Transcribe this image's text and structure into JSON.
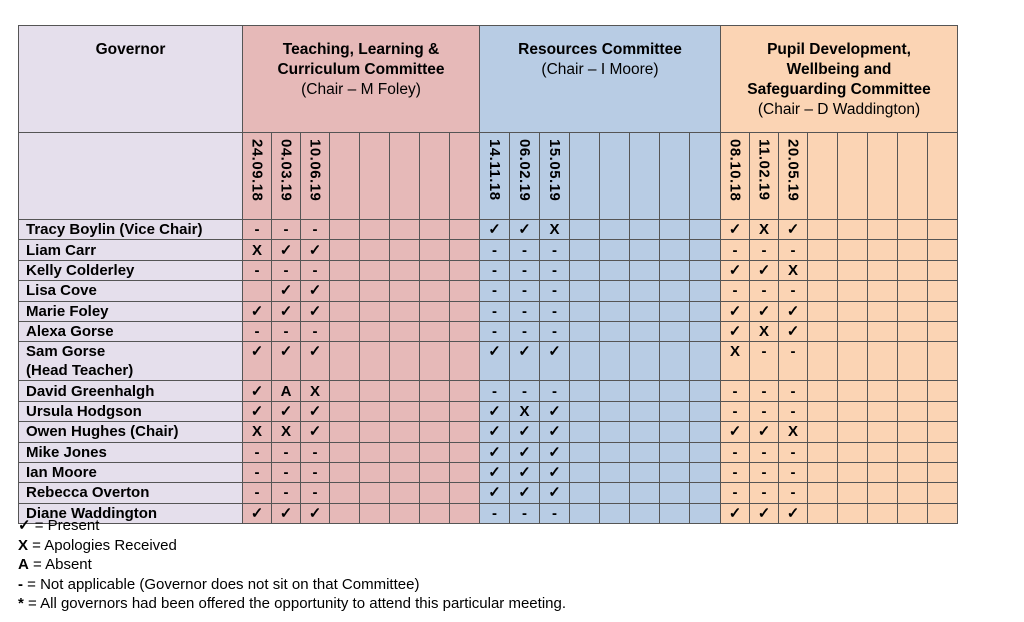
{
  "header": {
    "governor": "Governor",
    "committees": [
      {
        "title_line1": "Teaching, Learning &",
        "title_line2": "Curriculum Committee",
        "title_line3": "",
        "chair": "(Chair – M Foley)",
        "dates": [
          "24.09.18",
          "04.03.19",
          "10.06.19"
        ]
      },
      {
        "title_line1": "Resources Committee",
        "title_line2": "",
        "title_line3": "",
        "chair": "(Chair – I Moore)",
        "dates": [
          "14.11.18",
          "06.02.19",
          "15.05.19"
        ]
      },
      {
        "title_line1": "Pupil Development,",
        "title_line2": "Wellbeing and",
        "title_line3": "Safeguarding Committee",
        "chair": "(Chair – D Waddington)",
        "dates": [
          "08.10.18",
          "11.02.19",
          "20.05.19"
        ]
      }
    ]
  },
  "rows": [
    {
      "name": "Tracy Boylin (Vice Chair)",
      "name2": "",
      "c1": [
        "-",
        "-",
        "-"
      ],
      "c2": [
        "✓",
        "✓",
        "X"
      ],
      "c3": [
        "✓",
        "X",
        "✓"
      ]
    },
    {
      "name": "Liam Carr",
      "name2": "",
      "c1": [
        "X",
        "✓",
        "✓"
      ],
      "c2": [
        "-",
        "-",
        "-"
      ],
      "c3": [
        "-",
        "-",
        "-"
      ]
    },
    {
      "name": "Kelly Colderley",
      "name2": "",
      "c1": [
        "-",
        "-",
        "-"
      ],
      "c2": [
        "-",
        "-",
        "-"
      ],
      "c3": [
        "✓",
        "✓",
        "X"
      ]
    },
    {
      "name": "Lisa Cove",
      "name2": "",
      "c1": [
        "",
        "✓",
        "✓"
      ],
      "c2": [
        "-",
        "-",
        "-"
      ],
      "c3": [
        "-",
        "-",
        "-"
      ]
    },
    {
      "name": "Marie Foley",
      "name2": "",
      "c1": [
        "✓",
        "✓",
        "✓"
      ],
      "c2": [
        "-",
        "-",
        "-"
      ],
      "c3": [
        "✓",
        "✓",
        "✓"
      ]
    },
    {
      "name": "Alexa Gorse",
      "name2": "",
      "c1": [
        "-",
        "-",
        "-"
      ],
      "c2": [
        "-",
        "-",
        "-"
      ],
      "c3": [
        "✓",
        "X",
        "✓"
      ]
    },
    {
      "name": "Sam Gorse",
      "name2": "(Head Teacher)",
      "c1": [
        "✓",
        "✓",
        "✓"
      ],
      "c2": [
        "✓",
        "✓",
        "✓"
      ],
      "c3": [
        "X",
        "-",
        "-"
      ]
    },
    {
      "name": "David Greenhalgh",
      "name2": "",
      "c1": [
        "✓",
        "A",
        "X"
      ],
      "c2": [
        "-",
        "-",
        "-"
      ],
      "c3": [
        "-",
        "-",
        "-"
      ]
    },
    {
      "name": "Ursula Hodgson",
      "name2": "",
      "c1": [
        "✓",
        "✓",
        "✓"
      ],
      "c2": [
        "✓",
        "X",
        "✓"
      ],
      "c3": [
        "-",
        "-",
        "-"
      ]
    },
    {
      "name": "Owen Hughes (Chair)",
      "name2": "",
      "c1": [
        "X",
        "X",
        "✓"
      ],
      "c2": [
        "✓",
        "✓",
        "✓"
      ],
      "c3": [
        "✓",
        "✓",
        "X"
      ]
    },
    {
      "name": "Mike Jones",
      "name2": "",
      "c1": [
        "-",
        "-",
        "-"
      ],
      "c2": [
        "✓",
        "✓",
        "✓"
      ],
      "c3": [
        "-",
        "-",
        "-"
      ]
    },
    {
      "name": "Ian Moore",
      "name2": "",
      "c1": [
        "-",
        "-",
        "-"
      ],
      "c2": [
        "✓",
        "✓",
        "✓"
      ],
      "c3": [
        "-",
        "-",
        "-"
      ]
    },
    {
      "name": "Rebecca Overton",
      "name2": "",
      "c1": [
        "-",
        "-",
        "-"
      ],
      "c2": [
        "✓",
        "✓",
        "✓"
      ],
      "c3": [
        "-",
        "-",
        "-"
      ]
    },
    {
      "name": "Diane Waddington",
      "name2": "",
      "c1": [
        "✓",
        "✓",
        "✓"
      ],
      "c2": [
        "-",
        "-",
        "-"
      ],
      "c3": [
        "✓",
        "✓",
        "✓"
      ]
    }
  ],
  "legend": [
    {
      "symbol": "✓",
      "text": " = Present"
    },
    {
      "symbol": "X",
      "text": " = Apologies Received"
    },
    {
      "symbol": "A",
      "text": " = Absent"
    },
    {
      "symbol": "-",
      "text": " = Not applicable (Governor does not sit on that Committee)"
    },
    {
      "symbol": "*",
      "text": " = All governors had been offered the opportunity to attend this particular meeting."
    }
  ],
  "colors": {
    "governor": "#e5dfec",
    "teaching": "#e6b9b8",
    "resources": "#b8cce4",
    "pupil": "#fbd4b4"
  }
}
